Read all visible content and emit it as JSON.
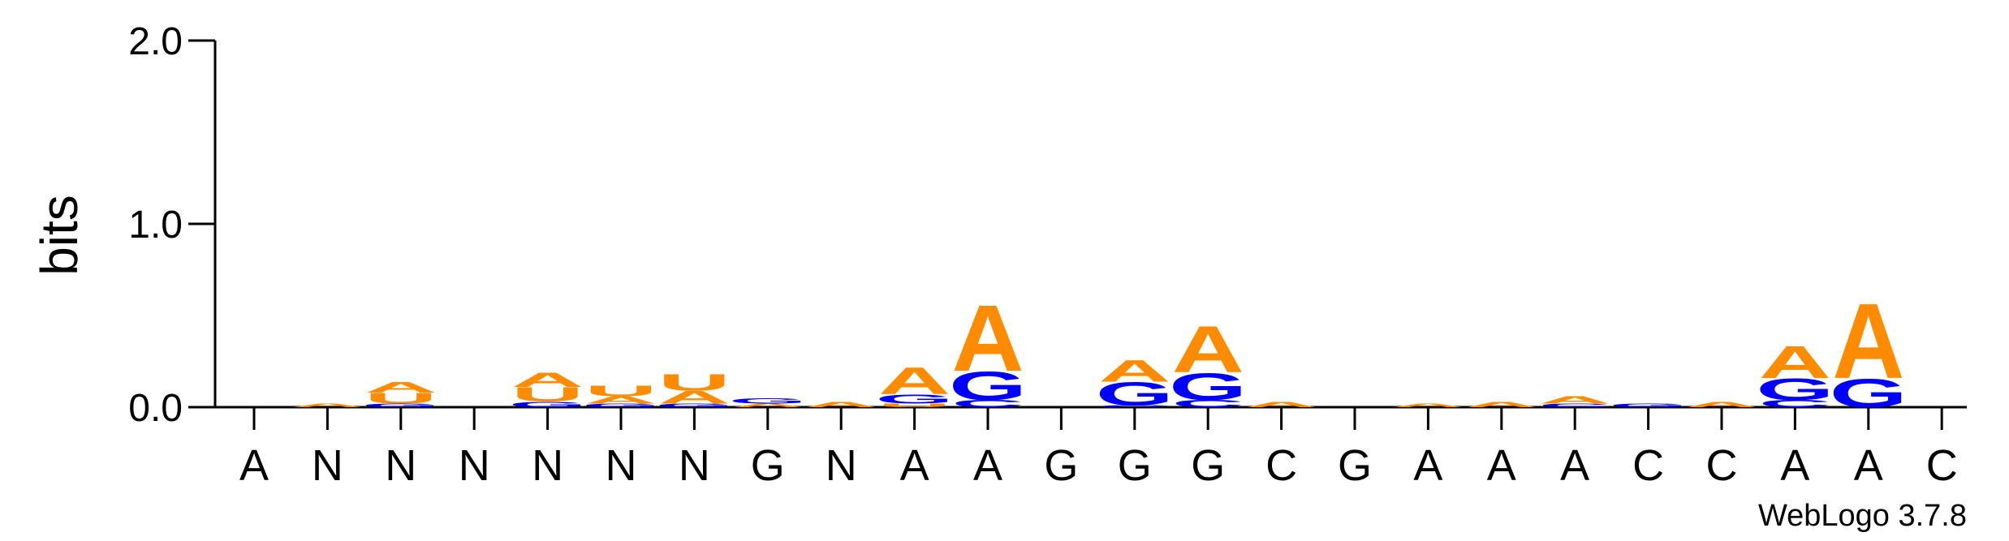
{
  "chart_data": {
    "type": "sequence-logo",
    "ylabel": "bits",
    "ylim": [
      0,
      2.0
    ],
    "yticks": [
      "0.0",
      "1.0",
      "2.0"
    ],
    "credit": "WebLogo 3.7.8",
    "colors": {
      "A": "#ff8c00",
      "U": "#ff8c00",
      "G": "#0000ff",
      "C": "#0000ff"
    },
    "positions": [
      {
        "label": "A",
        "stack": []
      },
      {
        "label": "N",
        "stack": [
          {
            "base": "A",
            "bits": 0.02
          }
        ]
      },
      {
        "label": "N",
        "stack": [
          {
            "base": "G",
            "bits": 0.02
          },
          {
            "base": "U",
            "bits": 0.06
          },
          {
            "base": "A",
            "bits": 0.06
          }
        ]
      },
      {
        "label": "N",
        "stack": []
      },
      {
        "label": "N",
        "stack": [
          {
            "base": "G",
            "bits": 0.03
          },
          {
            "base": "U",
            "bits": 0.08
          },
          {
            "base": "A",
            "bits": 0.08
          }
        ]
      },
      {
        "label": "N",
        "stack": [
          {
            "base": "G",
            "bits": 0.02
          },
          {
            "base": "A",
            "bits": 0.04
          },
          {
            "base": "U",
            "bits": 0.06
          }
        ]
      },
      {
        "label": "N",
        "stack": [
          {
            "base": "G",
            "bits": 0.02
          },
          {
            "base": "A",
            "bits": 0.07
          },
          {
            "base": "U",
            "bits": 0.09
          }
        ]
      },
      {
        "label": "G",
        "stack": [
          {
            "base": "A",
            "bits": 0.02
          },
          {
            "base": "G",
            "bits": 0.03
          }
        ]
      },
      {
        "label": "N",
        "stack": [
          {
            "base": "A",
            "bits": 0.03
          }
        ]
      },
      {
        "label": "A",
        "stack": [
          {
            "base": "U",
            "bits": 0.02
          },
          {
            "base": "G",
            "bits": 0.05
          },
          {
            "base": "A",
            "bits": 0.15
          }
        ]
      },
      {
        "label": "A",
        "stack": [
          {
            "base": "C",
            "bits": 0.04
          },
          {
            "base": "G",
            "bits": 0.16
          },
          {
            "base": "A",
            "bits": 0.37
          }
        ]
      },
      {
        "label": "G",
        "stack": []
      },
      {
        "label": "G",
        "stack": [
          {
            "base": "C",
            "bits": 0.01
          },
          {
            "base": "G",
            "bits": 0.13
          },
          {
            "base": "A",
            "bits": 0.12
          }
        ]
      },
      {
        "label": "G",
        "stack": [
          {
            "base": "C",
            "bits": 0.04
          },
          {
            "base": "G",
            "bits": 0.15
          },
          {
            "base": "A",
            "bits": 0.26
          }
        ]
      },
      {
        "label": "C",
        "stack": [
          {
            "base": "A",
            "bits": 0.03
          }
        ]
      },
      {
        "label": "G",
        "stack": []
      },
      {
        "label": "A",
        "stack": [
          {
            "base": "A",
            "bits": 0.02
          }
        ]
      },
      {
        "label": "A",
        "stack": [
          {
            "base": "A",
            "bits": 0.03
          }
        ]
      },
      {
        "label": "A",
        "stack": [
          {
            "base": "C",
            "bits": 0.02
          },
          {
            "base": "A",
            "bits": 0.04
          }
        ]
      },
      {
        "label": "C",
        "stack": [
          {
            "base": "G",
            "bits": 0.02
          }
        ]
      },
      {
        "label": "C",
        "stack": [
          {
            "base": "A",
            "bits": 0.03
          }
        ]
      },
      {
        "label": "A",
        "stack": [
          {
            "base": "C",
            "bits": 0.04
          },
          {
            "base": "G",
            "bits": 0.12
          },
          {
            "base": "A",
            "bits": 0.18
          }
        ]
      },
      {
        "label": "A",
        "stack": [
          {
            "base": "G",
            "bits": 0.16
          },
          {
            "base": "A",
            "bits": 0.42
          }
        ]
      },
      {
        "label": "C",
        "stack": []
      }
    ]
  }
}
